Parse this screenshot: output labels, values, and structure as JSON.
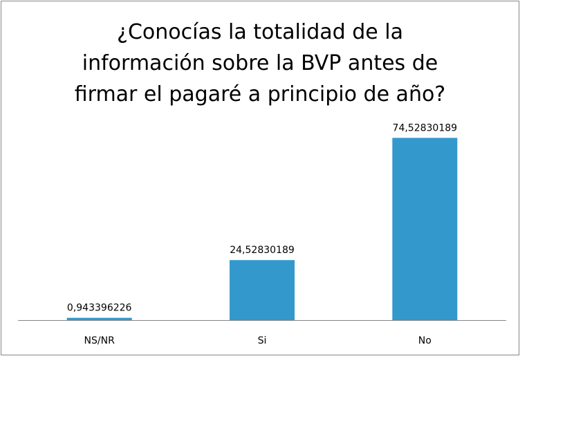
{
  "chart_data": {
    "type": "bar",
    "title_lines": [
      "¿Conocías la totalidad de la",
      "información sobre la BVP antes de",
      "firmar el pagaré a principio de año?"
    ],
    "categories": [
      "NS/NR",
      "Si",
      "No"
    ],
    "values": [
      0.943396226,
      24.52830189,
      74.52830189
    ],
    "value_labels": [
      "0,943396226",
      "24,52830189",
      "74,52830189"
    ],
    "ylim": [
      0,
      80
    ],
    "grid": false,
    "legend": "none",
    "bar_color": "#3399cc",
    "axis_color": "#868686"
  }
}
